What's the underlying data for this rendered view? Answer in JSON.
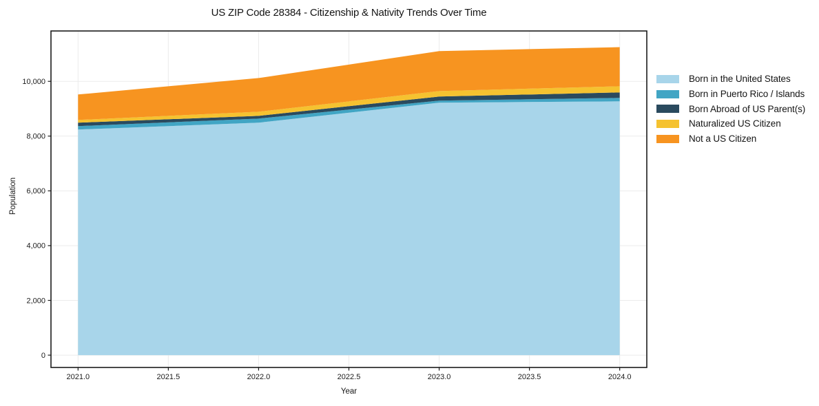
{
  "chart_data": {
    "type": "area",
    "stacked": true,
    "title": "US ZIP Code 28384 - Citizenship & Nativity Trends Over Time",
    "xlabel": "Year",
    "ylabel": "Population",
    "x": [
      2021,
      2022,
      2023,
      2024
    ],
    "series": [
      {
        "name": "Born in the United States",
        "color": "#a8d5ea",
        "values": [
          8240,
          8490,
          9220,
          9270
        ]
      },
      {
        "name": "Born in Puerto Rico / Islands",
        "color": "#41a5c4",
        "values": [
          125,
          150,
          75,
          125
        ]
      },
      {
        "name": "Born Abroad of US Parent(s)",
        "color": "#2a4a5e",
        "values": [
          125,
          100,
          150,
          200
        ]
      },
      {
        "name": "Naturalized US Citizen",
        "color": "#f5c230",
        "values": [
          100,
          150,
          200,
          225
        ]
      },
      {
        "name": "Not a US Citizen",
        "color": "#f79420",
        "values": [
          930,
          1230,
          1460,
          1430
        ]
      }
    ],
    "xlim": [
      2020.85,
      2024.15
    ],
    "ylim": [
      -450,
      11840
    ],
    "x_ticks": [
      2021.0,
      2021.5,
      2022.0,
      2022.5,
      2023.0,
      2023.5,
      2024.0
    ],
    "x_tick_labels": [
      "2021.0",
      "2021.5",
      "2022.0",
      "2022.5",
      "2023.0",
      "2023.5",
      "2024.0"
    ],
    "y_ticks": [
      0,
      2000,
      4000,
      6000,
      8000,
      10000
    ],
    "y_tick_labels": [
      "0",
      "2,000",
      "4,000",
      "6,000",
      "8,000",
      "10,000"
    ],
    "grid": true,
    "grid_color": "#ebebeb",
    "spine_color": "#1a1a1a",
    "legend_position": "outside-right"
  }
}
